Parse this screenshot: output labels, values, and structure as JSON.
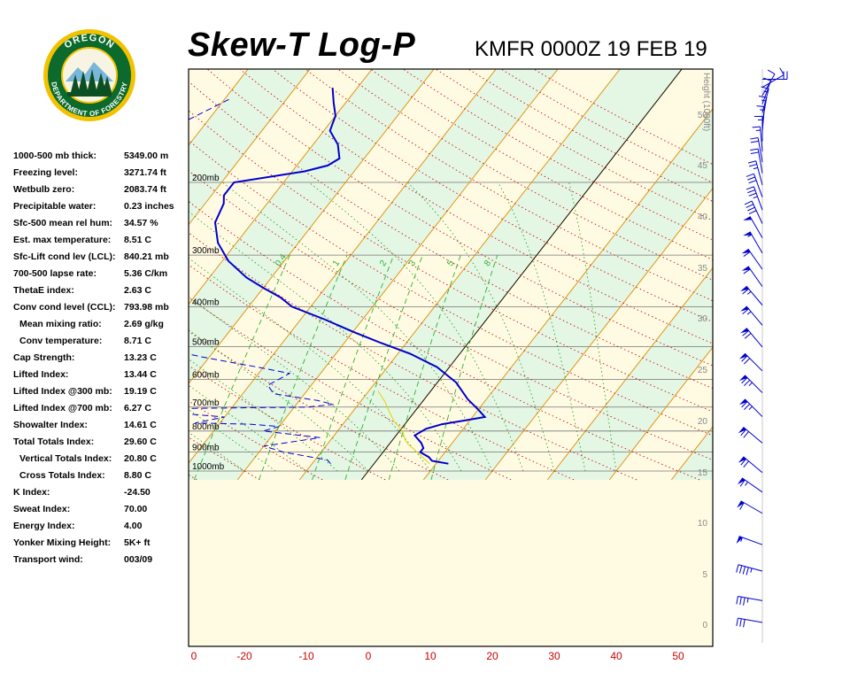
{
  "header": {
    "title": "Skew-T Log-P",
    "station_time": "KMFR 0000Z 19 FEB 19"
  },
  "logo": {
    "top_text": "OREGON",
    "bottom_text": "DEPARTMENT OF FORESTRY",
    "ring_color": "#0b6a2c",
    "band_color": "#f2c200"
  },
  "indices": [
    {
      "label": "1000-500 mb thick:",
      "value": "5349.00 m",
      "indent": false
    },
    {
      "label": "Freezing level:",
      "value": "3271.74 ft",
      "indent": false
    },
    {
      "label": "Wetbulb zero:",
      "value": "2083.74 ft",
      "indent": false
    },
    {
      "label": "Precipitable water:",
      "value": "0.23 inches",
      "indent": false
    },
    {
      "label": "Sfc-500 mean rel hum:",
      "value": "34.57 %",
      "indent": false
    },
    {
      "label": "Est. max temperature:",
      "value": "8.51 C",
      "indent": false
    },
    {
      "label": "Sfc-Lift cond lev (LCL):",
      "value": "840.21 mb",
      "indent": false
    },
    {
      "label": "700-500 lapse rate:",
      "value": "5.36 C/km",
      "indent": false
    },
    {
      "label": "ThetaE index:",
      "value": "2.63 C",
      "indent": false
    },
    {
      "label": "Conv cond level (CCL):",
      "value": "793.98 mb",
      "indent": false
    },
    {
      "label": "Mean mixing ratio:",
      "value": "2.69 g/kg",
      "indent": true
    },
    {
      "label": "Conv temperature:",
      "value": "8.71 C",
      "indent": true
    },
    {
      "label": "Cap Strength:",
      "value": "13.23 C",
      "indent": false
    },
    {
      "label": "Lifted Index:",
      "value": "13.44 C",
      "indent": false
    },
    {
      "label": "Lifted Index @300 mb:",
      "value": "19.19 C",
      "indent": false
    },
    {
      "label": "Lifted Index @700 mb:",
      "value": "6.27 C",
      "indent": false
    },
    {
      "label": "Showalter Index:",
      "value": "14.61 C",
      "indent": false
    },
    {
      "label": "Total Totals Index:",
      "value": "29.60 C",
      "indent": false
    },
    {
      "label": "Vertical Totals Index:",
      "value": "20.80 C",
      "indent": true
    },
    {
      "label": "Cross Totals Index:",
      "value": "8.80 C",
      "indent": true
    },
    {
      "label": "K Index:",
      "value": "-24.50",
      "indent": false
    },
    {
      "label": "Sweat Index:",
      "value": "70.00",
      "indent": false
    },
    {
      "label": "Energy Index:",
      "value": "4.00",
      "indent": false
    },
    {
      "label": "Yonker Mixing Height:",
      "value": "5K+ ft",
      "indent": false
    },
    {
      "label": "Transport wind:",
      "value": "003/09",
      "indent": false
    }
  ],
  "chart_data": {
    "type": "line",
    "title": "Skew-T Log-P",
    "x_axis": {
      "ticks": [
        -20,
        -10,
        0,
        10,
        20,
        30,
        40,
        50
      ],
      "color": "#cc0000"
    },
    "pressure_levels": [
      {
        "p": 200,
        "label": "200mb"
      },
      {
        "p": 300,
        "label": "300mb"
      },
      {
        "p": 400,
        "label": "400mb"
      },
      {
        "p": 500,
        "label": "500mb"
      },
      {
        "p": 600,
        "label": "600mb"
      },
      {
        "p": 700,
        "label": "700mb"
      },
      {
        "p": 800,
        "label": "800mb"
      },
      {
        "p": 900,
        "label": "900mb"
      },
      {
        "p": 1000,
        "label": "1000mb"
      }
    ],
    "height_axis": {
      "label": "Height (1000ft)",
      "ticks": [
        0,
        5,
        10,
        15,
        20,
        25,
        30,
        35,
        40,
        45,
        50
      ]
    },
    "mixing_ratio_labels": [
      "0.4",
      "1",
      "2",
      "3",
      "5",
      "8"
    ],
    "series": [
      {
        "key": "temperature",
        "color": "#0000cc",
        "points": [
          [
            12,
            960
          ],
          [
            9,
            945
          ],
          [
            8,
            925
          ],
          [
            6,
            900
          ],
          [
            6,
            880
          ],
          [
            5,
            855
          ],
          [
            3,
            820
          ],
          [
            4,
            790
          ],
          [
            6,
            770
          ],
          [
            9,
            755
          ],
          [
            12,
            740
          ],
          [
            10,
            710
          ],
          [
            7,
            670
          ],
          [
            3,
            610
          ],
          [
            -2,
            560
          ],
          [
            -8,
            520
          ],
          [
            -14,
            490
          ],
          [
            -20,
            460
          ],
          [
            -26,
            430
          ],
          [
            -33,
            400
          ],
          [
            -36,
            380
          ],
          [
            -40,
            360
          ],
          [
            -44,
            340
          ],
          [
            -49,
            310
          ],
          [
            -53,
            280
          ],
          [
            -56,
            250
          ],
          [
            -57,
            225
          ],
          [
            -58,
            215
          ],
          [
            -58,
            200
          ],
          [
            -48,
            188
          ],
          [
            -45,
            182
          ],
          [
            -44,
            175
          ],
          [
            -46,
            162
          ],
          [
            -49,
            150
          ],
          [
            -50,
            138
          ],
          [
            -52,
            128
          ],
          [
            -54,
            118
          ]
        ]
      },
      {
        "key": "dewpoint",
        "color": "#0000cc",
        "dashed": true,
        "points": [
          [
            -7,
            960
          ],
          [
            -8,
            940
          ],
          [
            -16,
            900
          ],
          [
            -20,
            870
          ],
          [
            -12,
            830
          ],
          [
            -22,
            800
          ],
          [
            -20,
            780
          ],
          [
            -25,
            770
          ],
          [
            -34,
            765
          ],
          [
            -30,
            740
          ],
          [
            -40,
            720
          ],
          [
            -52,
            715
          ],
          [
            -48,
            708
          ],
          [
            -32,
            704
          ],
          [
            -18,
            700
          ],
          [
            -14,
            690
          ],
          [
            -17,
            675
          ],
          [
            -25,
            650
          ],
          [
            -27,
            620
          ],
          [
            -25,
            580
          ],
          [
            -31,
            560
          ],
          [
            -41,
            530
          ],
          [
            -50,
            500
          ],
          [
            -55,
            460
          ],
          [
            -64,
            420
          ],
          [
            -63,
            390
          ],
          [
            -71,
            360
          ],
          [
            -75,
            340
          ],
          [
            -72,
            320
          ],
          [
            -77,
            300
          ],
          [
            -78,
            270
          ],
          [
            -84,
            240
          ],
          [
            -80,
            215
          ],
          [
            -83,
            200
          ],
          [
            -80,
            180
          ],
          [
            -78,
            160
          ],
          [
            -73,
            140
          ],
          [
            -69,
            125
          ]
        ]
      },
      {
        "key": "parcel",
        "color": "#e6d600",
        "points": [
          [
            9,
            960
          ],
          [
            5.5,
            900
          ],
          [
            3,
            860
          ],
          [
            2,
            840
          ],
          [
            0.5,
            800
          ],
          [
            -2,
            760
          ],
          [
            -4,
            720
          ],
          [
            -6,
            680
          ],
          [
            -8.5,
            640
          ]
        ]
      }
    ],
    "wind_barbs": [
      {
        "p": 960,
        "dir": 90,
        "kt": 20
      },
      {
        "p": 930,
        "dir": 60,
        "kt": 10
      },
      {
        "p": 900,
        "dir": 30,
        "kt": 10
      },
      {
        "p": 870,
        "dir": 20,
        "kt": 10
      },
      {
        "p": 840,
        "dir": 15,
        "kt": 15
      },
      {
        "p": 810,
        "dir": 10,
        "kt": 15
      },
      {
        "p": 780,
        "dir": 5,
        "kt": 15
      },
      {
        "p": 750,
        "dir": 0,
        "kt": 15
      },
      {
        "p": 720,
        "dir": 355,
        "kt": 15
      },
      {
        "p": 690,
        "dir": 350,
        "kt": 20
      },
      {
        "p": 660,
        "dir": 350,
        "kt": 20
      },
      {
        "p": 630,
        "dir": 345,
        "kt": 25
      },
      {
        "p": 600,
        "dir": 340,
        "kt": 30
      },
      {
        "p": 570,
        "dir": 340,
        "kt": 35
      },
      {
        "p": 540,
        "dir": 335,
        "kt": 40
      },
      {
        "p": 510,
        "dir": 330,
        "kt": 50
      },
      {
        "p": 480,
        "dir": 330,
        "kt": 55
      },
      {
        "p": 450,
        "dir": 325,
        "kt": 60
      },
      {
        "p": 420,
        "dir": 325,
        "kt": 60
      },
      {
        "p": 390,
        "dir": 320,
        "kt": 65
      },
      {
        "p": 360,
        "dir": 320,
        "kt": 65
      },
      {
        "p": 330,
        "dir": 320,
        "kt": 70
      },
      {
        "p": 300,
        "dir": 315,
        "kt": 70
      },
      {
        "p": 275,
        "dir": 315,
        "kt": 75
      },
      {
        "p": 250,
        "dir": 315,
        "kt": 75
      },
      {
        "p": 225,
        "dir": 310,
        "kt": 70
      },
      {
        "p": 200,
        "dir": 310,
        "kt": 70
      },
      {
        "p": 185,
        "dir": 305,
        "kt": 65
      },
      {
        "p": 170,
        "dir": 300,
        "kt": 60
      },
      {
        "p": 150,
        "dir": 290,
        "kt": 55
      },
      {
        "p": 135,
        "dir": 285,
        "kt": 45
      },
      {
        "p": 120,
        "dir": 280,
        "kt": 35
      },
      {
        "p": 110,
        "dir": 280,
        "kt": 30
      }
    ]
  }
}
